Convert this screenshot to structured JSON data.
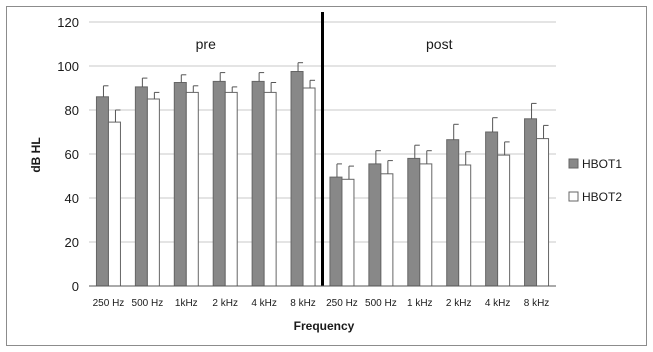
{
  "chart_data": {
    "type": "bar",
    "xlabel": "Frequency",
    "ylabel": "dB HL",
    "ylim": [
      0,
      120
    ],
    "yticks": [
      0,
      20,
      40,
      60,
      80,
      100,
      120
    ],
    "grid": true,
    "legend_position": "right",
    "categories": [
      "250 Hz",
      "500 Hz",
      "1kHz",
      "2 kHz",
      "4 kHz",
      "8 kHz",
      "250 Hz",
      "500 Hz",
      "1 kHz",
      "2 kHz",
      "4 kHz",
      "8 kHz"
    ],
    "periods": [
      {
        "label": "pre",
        "categories": 6
      },
      {
        "label": "post",
        "categories": 6
      }
    ],
    "series": [
      {
        "name": "HBOT1",
        "color": "#888888",
        "values": [
          86,
          90.5,
          92.5,
          93,
          93,
          97.5,
          49.5,
          55.5,
          58,
          66.5,
          70,
          76
        ],
        "error": [
          5,
          4,
          3.5,
          4,
          4,
          4,
          6,
          6,
          6,
          7,
          6.5,
          7
        ]
      },
      {
        "name": "HBOT2",
        "color": "#ffffff",
        "values": [
          74.5,
          85,
          88,
          88,
          88,
          90,
          48.5,
          51,
          55.5,
          55,
          59.5,
          67
        ],
        "error": [
          5.5,
          3,
          3,
          2.5,
          4.5,
          3.5,
          6,
          6,
          6,
          6,
          6,
          6
        ]
      }
    ]
  }
}
